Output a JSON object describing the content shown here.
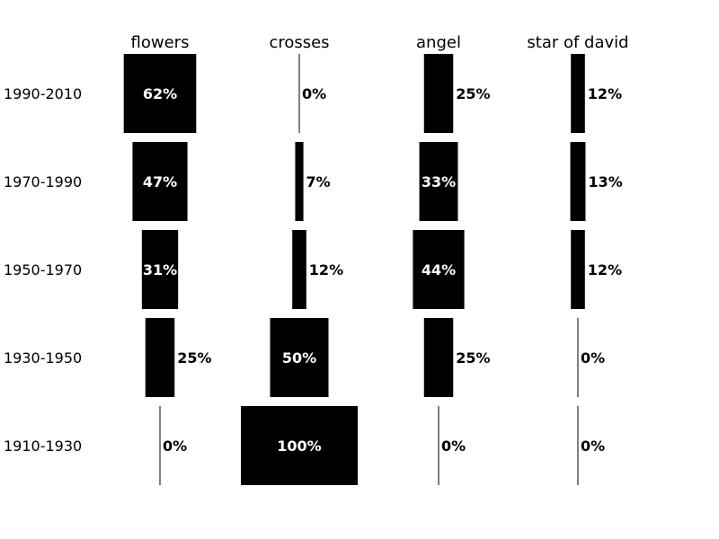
{
  "chart_data": {
    "type": "bar",
    "title": "",
    "columns": [
      "flowers",
      "crosses",
      "angel",
      "star of david"
    ],
    "rows": [
      "1990-2010",
      "1970-1990",
      "1950-1970",
      "1930-1950",
      "1910-1930"
    ],
    "values": [
      [
        62,
        0,
        25,
        12
      ],
      [
        47,
        7,
        33,
        13
      ],
      [
        31,
        12,
        44,
        12
      ],
      [
        25,
        50,
        25,
        0
      ],
      [
        0,
        100,
        0,
        0
      ]
    ],
    "value_suffix": "%",
    "xlim": [
      0,
      100
    ],
    "grid": false,
    "bar_color": "#000000",
    "inside_label_color": "#ffffff",
    "outside_label_color": "#000000"
  }
}
